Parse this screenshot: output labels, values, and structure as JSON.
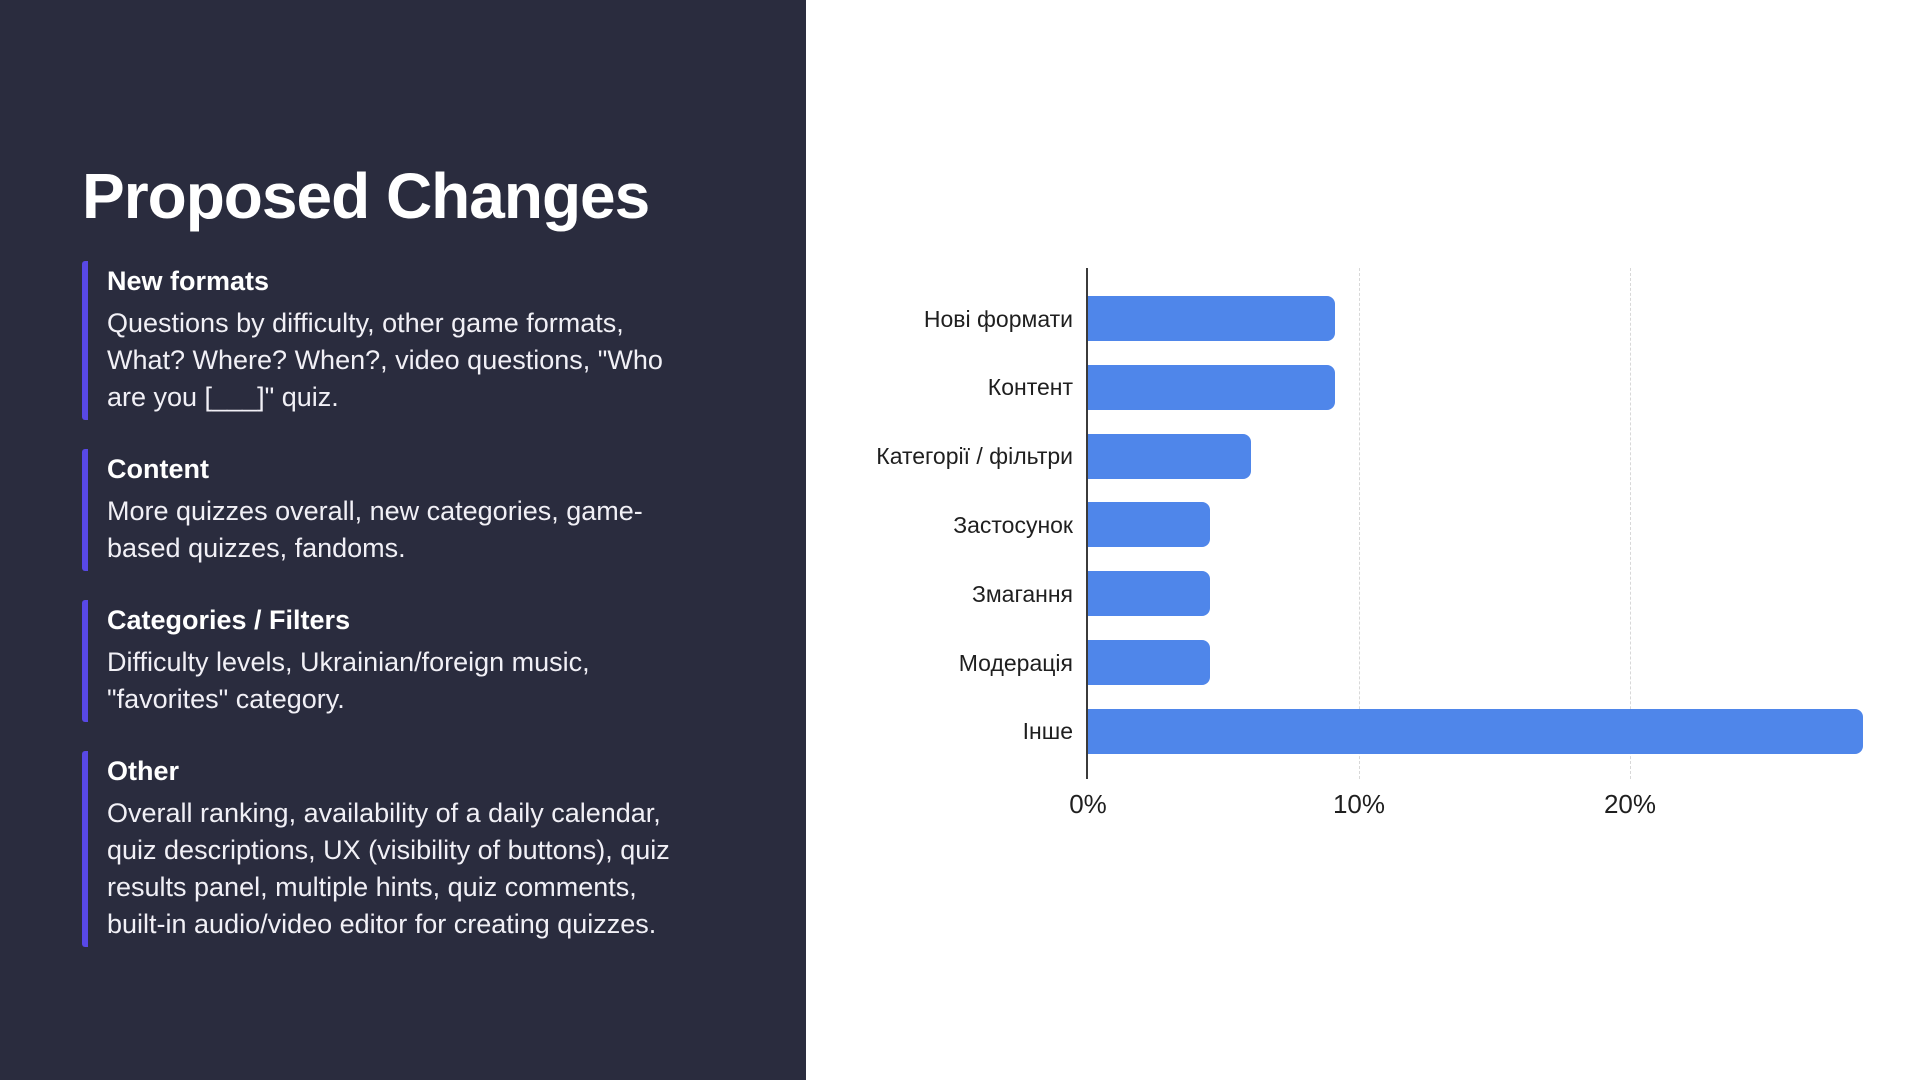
{
  "panel": {
    "title": "Proposed Changes",
    "background": "#2A2C3E",
    "accent_color": "#5848E6",
    "sections": [
      {
        "heading": "New formats",
        "lines": [
          "Questions by difficulty, other game formats,",
          "What? Where? When?, video questions, \"Who",
          "are you [___]\" quiz."
        ]
      },
      {
        "heading": "Content",
        "lines": [
          "More quizzes overall, new categories, game-",
          "based quizzes, fandoms."
        ]
      },
      {
        "heading": "Categories / Filters",
        "lines": [
          "Difficulty levels, Ukrainian/foreign music,",
          "\"favorites\" category."
        ]
      },
      {
        "heading": "Other",
        "lines": [
          "Overall ranking, availability of a daily calendar,",
          "quiz descriptions, UX (visibility of buttons), quiz",
          "results panel, multiple hints, quiz comments,",
          "built-in audio/video editor for creating quizzes."
        ]
      }
    ]
  },
  "chart_data": {
    "type": "bar",
    "orientation": "horizontal",
    "title": "",
    "xlabel": "",
    "ylabel": "",
    "categories": [
      "Нові формати",
      "Контент",
      "Категорії / фільтри",
      "Застосунок",
      "Змагання",
      "Модерація",
      "Інше"
    ],
    "values": [
      9.1,
      9.1,
      6.0,
      4.5,
      4.5,
      4.5,
      28.6
    ],
    "unit": "%",
    "xlim": [
      0,
      30
    ],
    "x_ticks": [
      {
        "label": "0%",
        "value": 0
      },
      {
        "label": "10%",
        "value": 10
      },
      {
        "label": "20%",
        "value": 20
      }
    ],
    "grid": true,
    "legend": "none",
    "bar_color": "#4F86EA",
    "axis_color": "#3B3B3B",
    "gridline_color": "#D8D8D8"
  }
}
